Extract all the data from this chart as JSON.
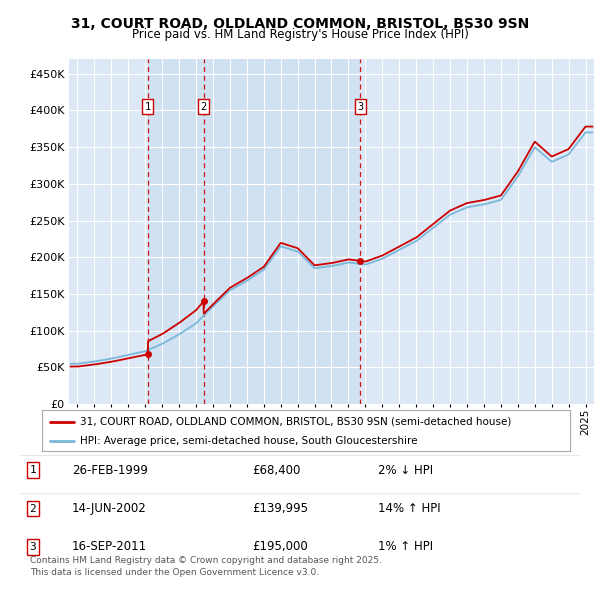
{
  "title": "31, COURT ROAD, OLDLAND COMMON, BRISTOL, BS30 9SN",
  "subtitle": "Price paid vs. HM Land Registry's House Price Index (HPI)",
  "legend_line1": "31, COURT ROAD, OLDLAND COMMON, BRISTOL, BS30 9SN (semi-detached house)",
  "legend_line2": "HPI: Average price, semi-detached house, South Gloucestershire",
  "footer": "Contains HM Land Registry data © Crown copyright and database right 2025.\nThis data is licensed under the Open Government Licence v3.0.",
  "sale_markers": [
    {
      "num": 1,
      "date": "26-FEB-1999",
      "date_x": 1999.15,
      "price": 68400,
      "pct": "2%",
      "dir": "↓"
    },
    {
      "num": 2,
      "date": "14-JUN-2002",
      "date_x": 2002.45,
      "price": 139995,
      "pct": "14%",
      "dir": "↑"
    },
    {
      "num": 3,
      "date": "16-SEP-2011",
      "date_x": 2011.71,
      "price": 195000,
      "pct": "1%",
      "dir": "↑"
    }
  ],
  "ylim": [
    0,
    470000
  ],
  "yticks": [
    0,
    50000,
    100000,
    150000,
    200000,
    250000,
    300000,
    350000,
    400000,
    450000
  ],
  "ytick_labels": [
    "£0",
    "£50K",
    "£100K",
    "£150K",
    "£200K",
    "£250K",
    "£300K",
    "£350K",
    "£400K",
    "£450K"
  ],
  "xlim": [
    1994.5,
    2025.5
  ],
  "hpi_color": "#7ab8d9",
  "price_color": "#cc0000",
  "marker_box_color": "#cc0000",
  "dashed_color": "#cc0000",
  "bg_color": "#dce8f5",
  "grid_color": "#ffffff",
  "shade_color": "#c5dcf0"
}
